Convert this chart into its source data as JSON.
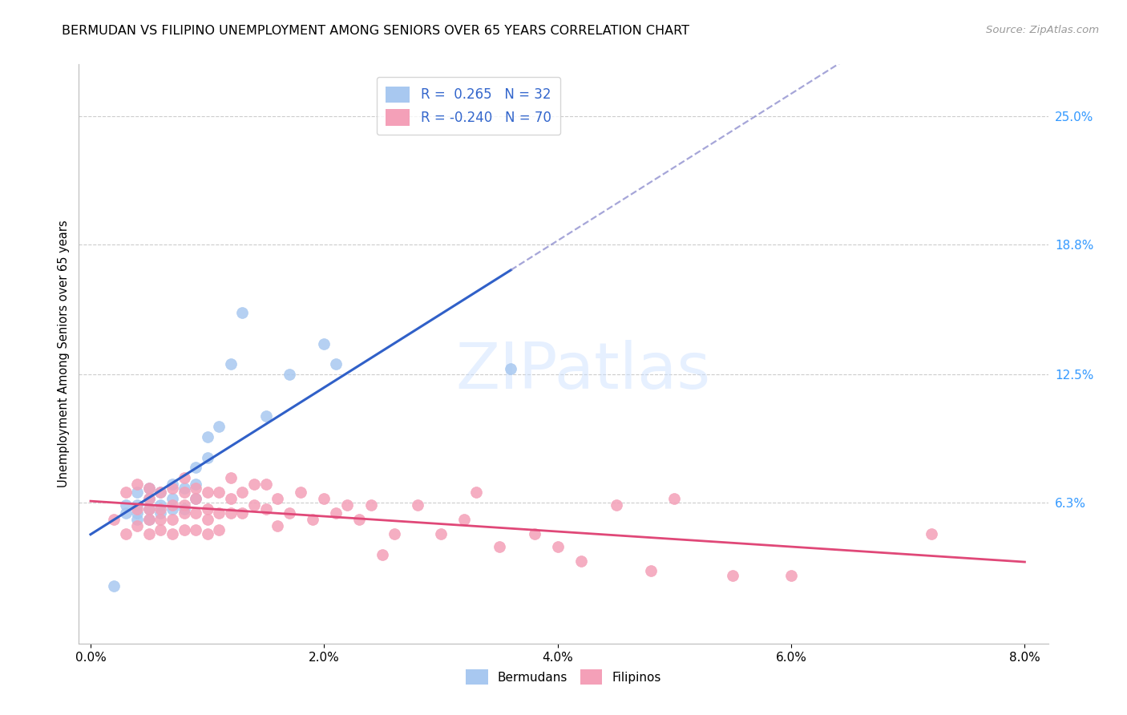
{
  "title": "BERMUDAN VS FILIPINO UNEMPLOYMENT AMONG SENIORS OVER 65 YEARS CORRELATION CHART",
  "source": "Source: ZipAtlas.com",
  "ylabel": "Unemployment Among Seniors over 65 years",
  "xlabel_ticks": [
    "0.0%",
    "2.0%",
    "4.0%",
    "6.0%",
    "8.0%"
  ],
  "xlabel_vals": [
    0.0,
    0.02,
    0.04,
    0.06,
    0.08
  ],
  "ylabel_ticks_right": [
    "25.0%",
    "18.8%",
    "12.5%",
    "6.3%"
  ],
  "ylabel_vals_right": [
    0.25,
    0.188,
    0.125,
    0.063
  ],
  "xlim": [
    -0.001,
    0.082
  ],
  "ylim": [
    -0.005,
    0.275
  ],
  "watermark_text": "ZIPatlas",
  "bermudan_color": "#A8C8F0",
  "filipino_color": "#F4A0B8",
  "bermudan_line_color": "#3060C8",
  "filipino_line_color": "#E04878",
  "bermudan_dashed_color": "#8888CC",
  "grid_color": "#CCCCCC",
  "background_color": "#FFFFFF",
  "bermudan_scatter_x": [
    0.002,
    0.003,
    0.003,
    0.004,
    0.004,
    0.004,
    0.004,
    0.005,
    0.005,
    0.005,
    0.005,
    0.006,
    0.006,
    0.006,
    0.007,
    0.007,
    0.007,
    0.008,
    0.008,
    0.009,
    0.009,
    0.009,
    0.01,
    0.01,
    0.011,
    0.012,
    0.013,
    0.015,
    0.017,
    0.02,
    0.021,
    0.036
  ],
  "bermudan_scatter_y": [
    0.023,
    0.058,
    0.062,
    0.055,
    0.058,
    0.062,
    0.068,
    0.055,
    0.06,
    0.065,
    0.07,
    0.058,
    0.062,
    0.068,
    0.06,
    0.065,
    0.072,
    0.06,
    0.07,
    0.065,
    0.072,
    0.08,
    0.085,
    0.095,
    0.1,
    0.13,
    0.155,
    0.105,
    0.125,
    0.14,
    0.13,
    0.128
  ],
  "filipino_scatter_x": [
    0.002,
    0.003,
    0.003,
    0.004,
    0.004,
    0.004,
    0.005,
    0.005,
    0.005,
    0.005,
    0.005,
    0.006,
    0.006,
    0.006,
    0.006,
    0.007,
    0.007,
    0.007,
    0.007,
    0.008,
    0.008,
    0.008,
    0.008,
    0.008,
    0.009,
    0.009,
    0.009,
    0.009,
    0.01,
    0.01,
    0.01,
    0.01,
    0.011,
    0.011,
    0.011,
    0.012,
    0.012,
    0.012,
    0.013,
    0.013,
    0.014,
    0.014,
    0.015,
    0.015,
    0.016,
    0.016,
    0.017,
    0.018,
    0.019,
    0.02,
    0.021,
    0.022,
    0.023,
    0.024,
    0.025,
    0.026,
    0.028,
    0.03,
    0.032,
    0.033,
    0.035,
    0.038,
    0.04,
    0.042,
    0.045,
    0.048,
    0.05,
    0.055,
    0.06,
    0.072
  ],
  "filipino_scatter_y": [
    0.055,
    0.048,
    0.068,
    0.052,
    0.06,
    0.072,
    0.048,
    0.055,
    0.06,
    0.065,
    0.07,
    0.05,
    0.055,
    0.06,
    0.068,
    0.048,
    0.055,
    0.062,
    0.07,
    0.05,
    0.058,
    0.062,
    0.068,
    0.075,
    0.05,
    0.058,
    0.065,
    0.07,
    0.048,
    0.055,
    0.06,
    0.068,
    0.05,
    0.058,
    0.068,
    0.058,
    0.065,
    0.075,
    0.058,
    0.068,
    0.062,
    0.072,
    0.06,
    0.072,
    0.052,
    0.065,
    0.058,
    0.068,
    0.055,
    0.065,
    0.058,
    0.062,
    0.055,
    0.062,
    0.038,
    0.048,
    0.062,
    0.048,
    0.055,
    0.068,
    0.042,
    0.048,
    0.042,
    0.035,
    0.062,
    0.03,
    0.065,
    0.028,
    0.028,
    0.048
  ],
  "solid_line_x_end": 0.036,
  "bermudan_line_intercept": 0.042,
  "bermudan_line_slope": 2.8,
  "filipino_line_intercept": 0.068,
  "filipino_line_slope": -0.35
}
